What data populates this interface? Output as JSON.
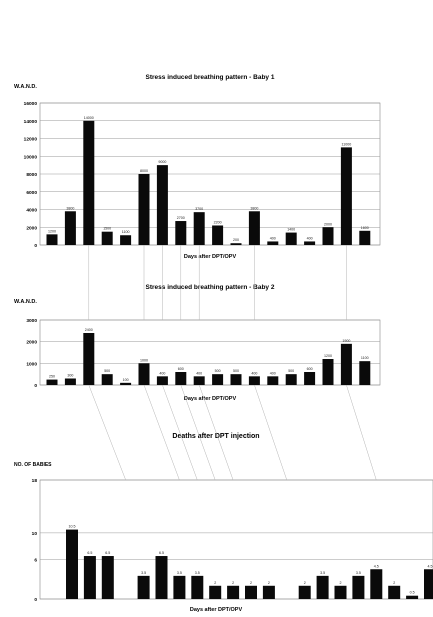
{
  "intro_lines": [
    "",
    "",
    "",
    "",
    ""
  ],
  "chart_data": [
    {
      "type": "bar",
      "title": "Stress induced breathing pattern - Baby 1",
      "ylabel": "W.A.N.D.",
      "xlabel": "Days after DPT/OPV",
      "ylim": [
        0,
        16000
      ],
      "yticks": [
        "0",
        "2000",
        "4000",
        "6000",
        "8000",
        "10000",
        "12000",
        "14000",
        "16000"
      ],
      "values": [
        1200,
        3800,
        14000,
        1500,
        1100,
        8000,
        9000,
        2700,
        3700,
        2200,
        200,
        3800,
        400,
        1400,
        400,
        2000,
        11000,
        1600
      ]
    },
    {
      "type": "bar",
      "title": "Stress induced breathing pattern - Baby 2",
      "ylabel": "W.A.N.D.",
      "xlabel": "Days after DPT/OPV",
      "ylim": [
        0,
        3000
      ],
      "yticks": [
        "0",
        "1000",
        "2000",
        "3000"
      ],
      "values": [
        250,
        300,
        2400,
        500,
        100,
        1000,
        400,
        600,
        400,
        500,
        500,
        400,
        400,
        500,
        600,
        1200,
        1900,
        1100
      ]
    },
    {
      "type": "bar",
      "title": "Deaths after DPT injection",
      "subtitle": "",
      "ylabel": "NO. OF BABIES",
      "xlabel": "Days after DPT/OPV",
      "ylim": [
        0,
        18
      ],
      "yticks": [
        "0",
        "6",
        "10",
        "18"
      ],
      "values": [
        10.5,
        6.5,
        6.5,
        0,
        3.5,
        6.5,
        3.5,
        3.5,
        2.0,
        2.0,
        2.0,
        2.0,
        0,
        2.0,
        3.5,
        2.0,
        3.5,
        4.5,
        2.0,
        0.5,
        4.5
      ]
    }
  ]
}
